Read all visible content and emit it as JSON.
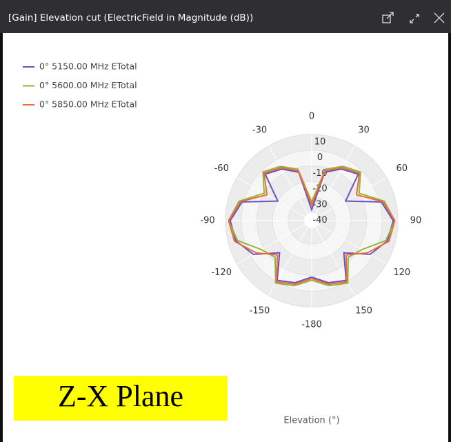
{
  "window_title": "[Gain] Elevation cut (ElectricField in Magnitude (dB))",
  "plane_label": "Z-X Plane",
  "chart_data": {
    "type": "polar",
    "x_label": "Elevation (°)",
    "theta": [
      -180,
      -165,
      -150,
      -135,
      -120,
      -105,
      -90,
      -75,
      -60,
      -45,
      -30,
      -15,
      0,
      15,
      30,
      45,
      60,
      75,
      90,
      105,
      120,
      135,
      150,
      165,
      180
    ],
    "series": [
      {
        "name": "0° 5150.00 MHz ETotal",
        "color": "#6a4fc0",
        "values": [
          -9,
          -4,
          -1,
          -16,
          -2,
          5,
          7,
          1,
          -20,
          -3,
          -7,
          -13,
          -38,
          -13,
          -7,
          -3,
          -20,
          1,
          7,
          5,
          -2,
          -16,
          -1,
          -4,
          -9
        ]
      },
      {
        "name": "0° 5600.00 MHz ETotal",
        "color": "#8cb83a",
        "values": [
          -7,
          -2,
          1,
          -12,
          -8,
          4,
          8,
          3,
          -10,
          -1,
          -5,
          -11,
          -33,
          -11,
          -5,
          -1,
          -10,
          3,
          8,
          4,
          -8,
          -12,
          1,
          -2,
          -7
        ]
      },
      {
        "name": "0° 5850.00 MHz ETotal",
        "color": "#f06a35",
        "values": [
          -8,
          -3,
          0,
          -14,
          -4,
          6,
          8,
          2,
          -12,
          -2,
          -6,
          -12,
          -35,
          -12,
          -6,
          -2,
          -12,
          2,
          8,
          6,
          -4,
          -14,
          0,
          -3,
          -8
        ]
      }
    ],
    "rlim": [
      -45,
      10
    ],
    "rticks": [
      -40,
      -30,
      -20,
      -10,
      0,
      10
    ],
    "thetaticks": [
      -180,
      -150,
      -120,
      -90,
      -60,
      -30,
      0,
      30,
      60,
      90,
      120,
      150
    ],
    "legend": "upper left"
  }
}
